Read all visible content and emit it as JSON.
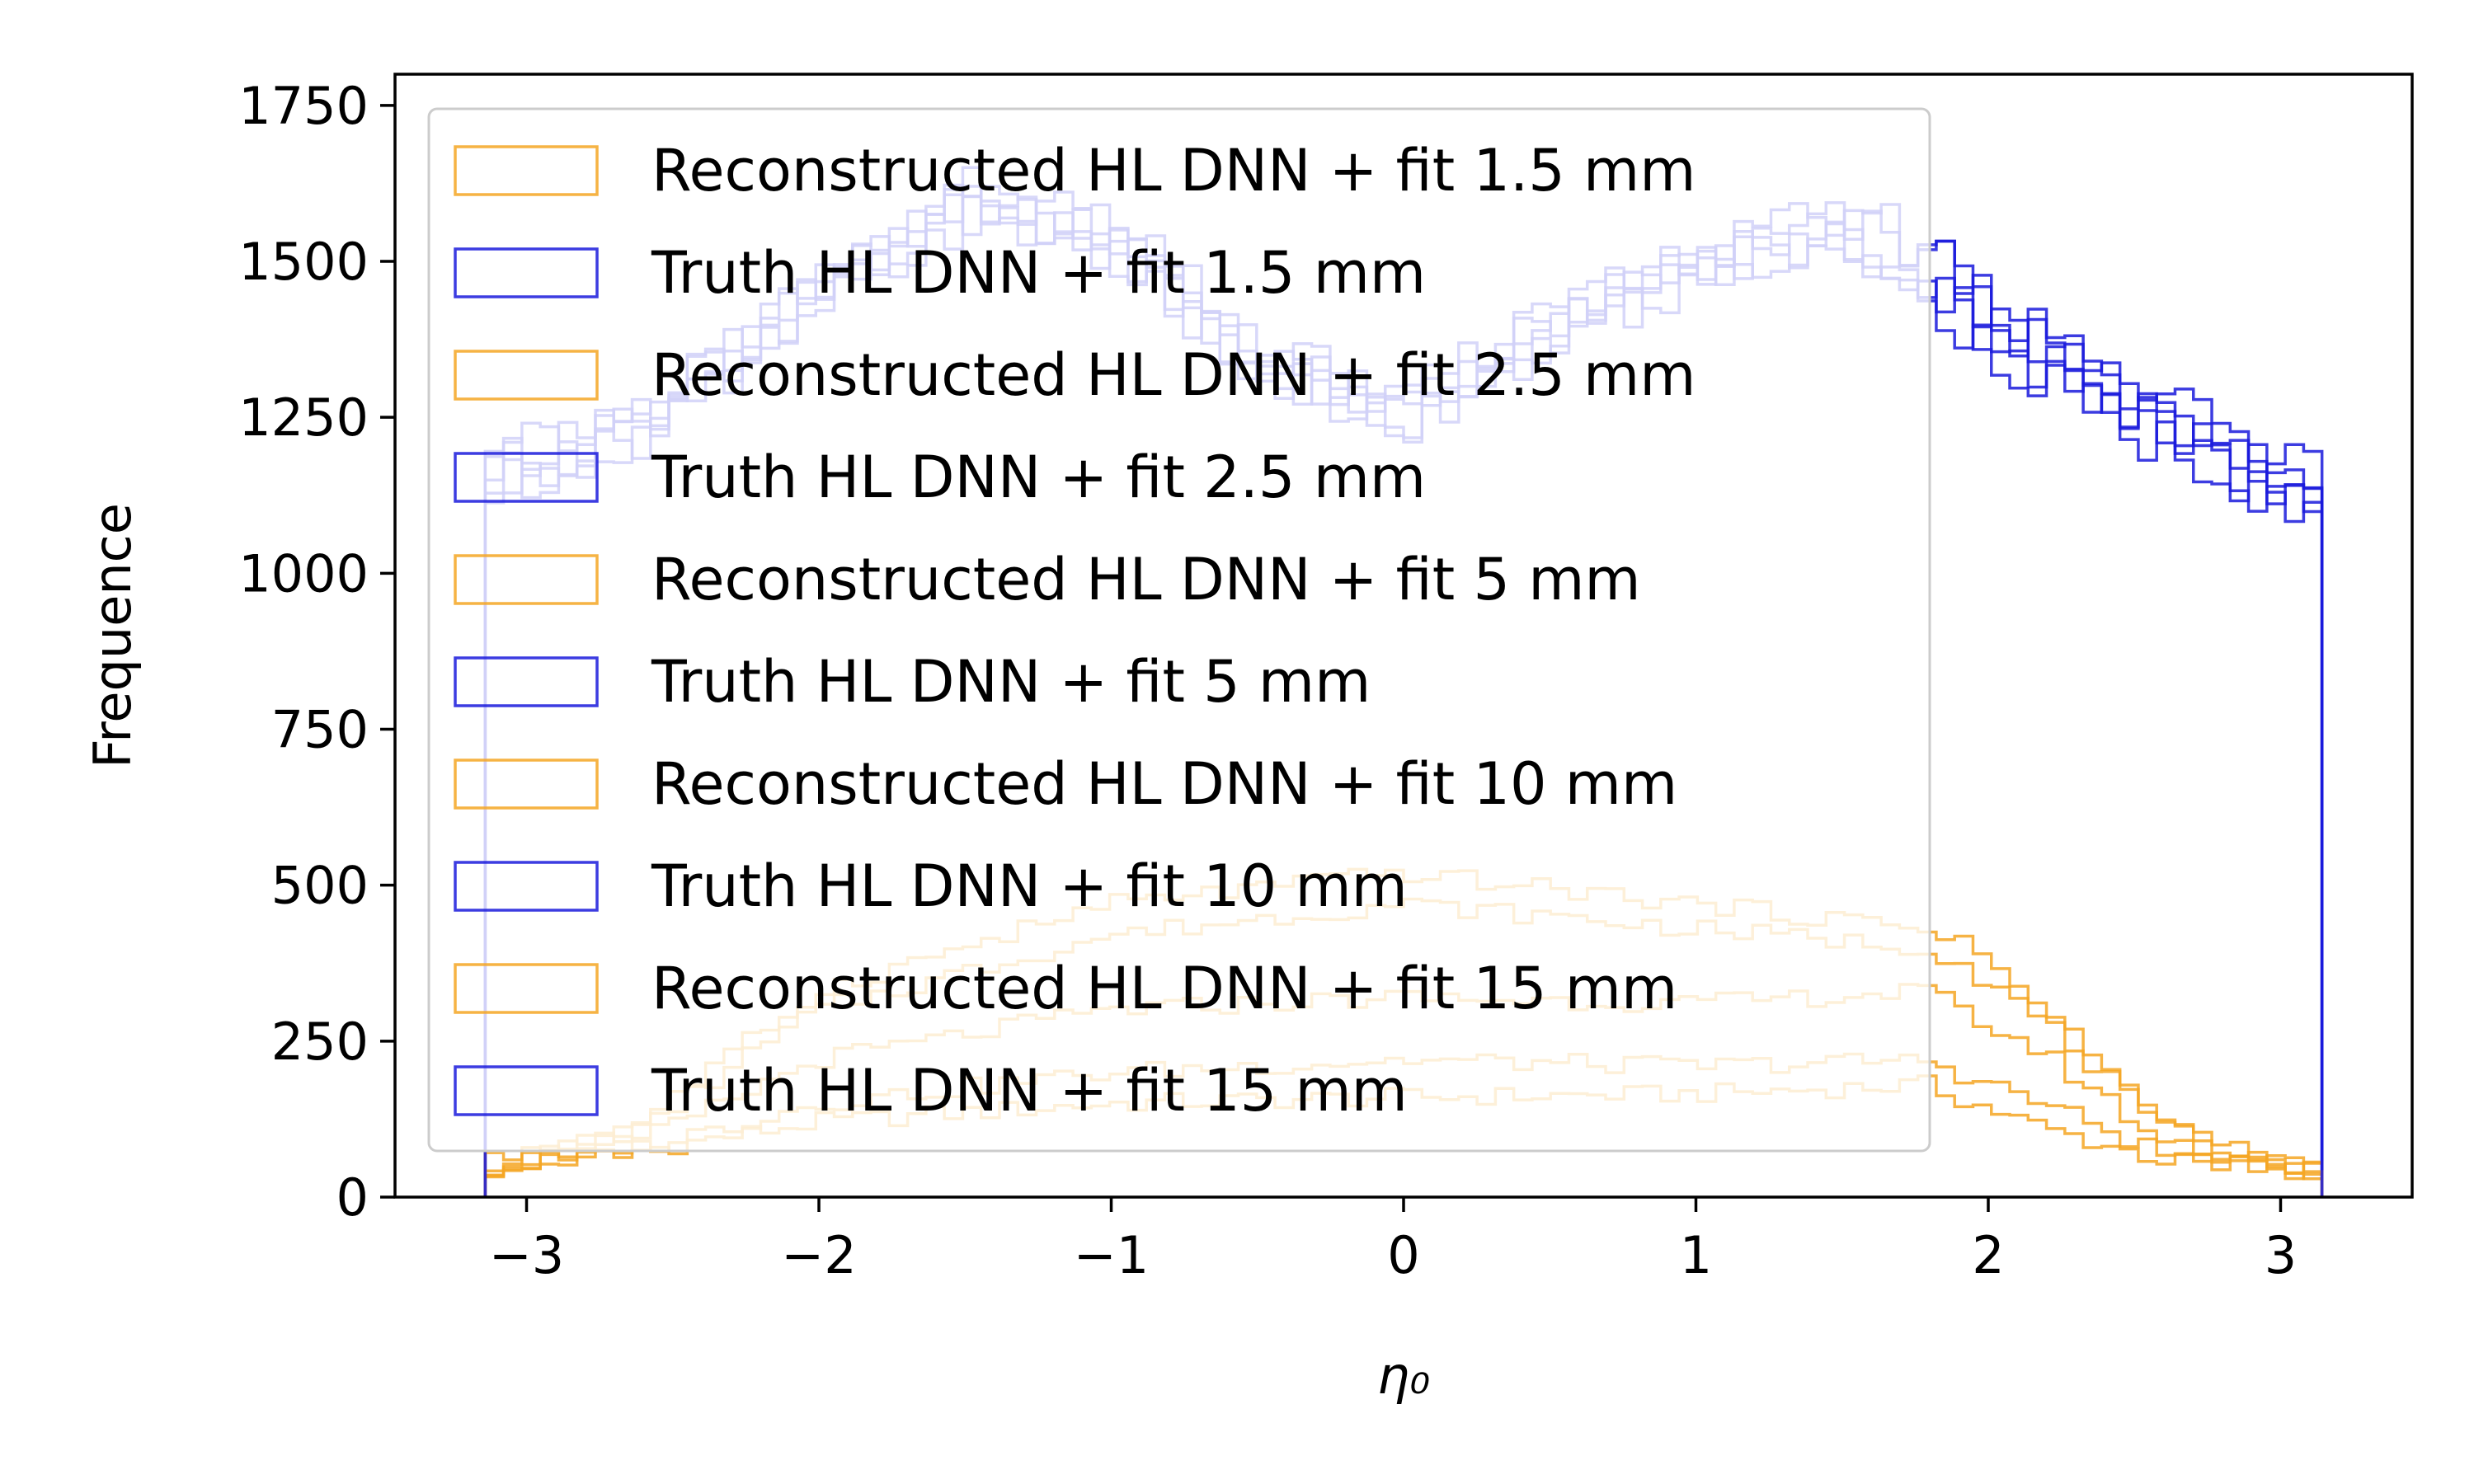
{
  "chart_data": {
    "type": "histogram",
    "title": "",
    "xlabel": "η₀",
    "ylabel": "Frequence",
    "xlim": [
      -3.45,
      3.45
    ],
    "ylim": [
      0,
      1800
    ],
    "x_ticks": [
      -3,
      -2,
      -1,
      0,
      1,
      2,
      3
    ],
    "x_tick_labels": [
      "−3",
      "−2",
      "−1",
      "0",
      "1",
      "2",
      "3"
    ],
    "y_ticks": [
      0,
      250,
      500,
      750,
      1000,
      1250,
      1500,
      1750
    ],
    "y_tick_labels": [
      "0",
      "250",
      "500",
      "750",
      "1000",
      "1250",
      "1500",
      "1750"
    ],
    "grid": false,
    "legend_position": "upper-left",
    "histtype": "step",
    "bins": {
      "range": [
        -3.1416,
        3.1416
      ],
      "count": 100
    },
    "colors": {
      "reconstructed": "#f5a623",
      "truth": "#1a1adc"
    },
    "series": [
      {
        "name": "Reconstructed HL DNN + fit 1.5 mm",
        "group": "reconstructed",
        "anchors": [
          [
            -3.14,
            40
          ],
          [
            -2.6,
            75
          ],
          [
            -2.0,
            120
          ],
          [
            -1.0,
            150
          ],
          [
            0.0,
            160
          ],
          [
            1.0,
            165
          ],
          [
            1.8,
            180
          ],
          [
            1.9,
            160
          ],
          [
            2.2,
            110
          ],
          [
            2.6,
            60
          ],
          [
            3.14,
            35
          ]
        ]
      },
      {
        "name": "Truth HL DNN + fit 1.5 mm",
        "group": "truth",
        "anchors": [
          [
            -3.14,
            1150
          ],
          [
            -2.6,
            1250
          ],
          [
            -2.0,
            1450
          ],
          [
            -1.5,
            1600
          ],
          [
            -1.0,
            1550
          ],
          [
            -0.5,
            1350
          ],
          [
            0.0,
            1250
          ],
          [
            0.5,
            1400
          ],
          [
            1.0,
            1500
          ],
          [
            1.5,
            1560
          ],
          [
            1.85,
            1500
          ],
          [
            2.2,
            1350
          ],
          [
            2.6,
            1250
          ],
          [
            3.14,
            1150
          ]
        ]
      },
      {
        "name": "Reconstructed HL DNN + fit 2.5 mm",
        "group": "reconstructed",
        "anchors": [
          [
            -3.14,
            40
          ],
          [
            -2.6,
            80
          ],
          [
            -2.0,
            150
          ],
          [
            -1.0,
            200
          ],
          [
            0.0,
            220
          ],
          [
            1.0,
            210
          ],
          [
            1.8,
            220
          ],
          [
            1.9,
            200
          ],
          [
            2.2,
            150
          ],
          [
            2.6,
            70
          ],
          [
            3.14,
            35
          ]
        ]
      },
      {
        "name": "Truth HL DNN + fit 2.5 mm",
        "group": "truth",
        "anchors": [
          [
            -3.14,
            1150
          ],
          [
            -2.6,
            1230
          ],
          [
            -2.0,
            1430
          ],
          [
            -1.5,
            1580
          ],
          [
            -1.0,
            1530
          ],
          [
            -0.5,
            1330
          ],
          [
            0.0,
            1240
          ],
          [
            0.5,
            1380
          ],
          [
            1.0,
            1480
          ],
          [
            1.5,
            1540
          ],
          [
            1.85,
            1450
          ],
          [
            2.2,
            1320
          ],
          [
            2.6,
            1210
          ],
          [
            3.14,
            1100
          ]
        ]
      },
      {
        "name": "Reconstructed HL DNN + fit 5 mm",
        "group": "reconstructed",
        "anchors": [
          [
            -3.14,
            45
          ],
          [
            -2.6,
            90
          ],
          [
            -2.0,
            220
          ],
          [
            -1.0,
            300
          ],
          [
            0.0,
            320
          ],
          [
            1.0,
            310
          ],
          [
            1.8,
            330
          ],
          [
            1.9,
            300
          ],
          [
            2.2,
            230
          ],
          [
            2.6,
            90
          ],
          [
            3.14,
            40
          ]
        ]
      },
      {
        "name": "Truth HL DNN + fit 5 mm",
        "group": "truth",
        "anchors": [
          [
            -3.14,
            1140
          ],
          [
            -2.6,
            1220
          ],
          [
            -2.0,
            1420
          ],
          [
            -1.5,
            1570
          ],
          [
            -1.0,
            1520
          ],
          [
            -0.5,
            1320
          ],
          [
            0.0,
            1230
          ],
          [
            0.5,
            1370
          ],
          [
            1.0,
            1470
          ],
          [
            1.5,
            1530
          ],
          [
            1.85,
            1420
          ],
          [
            2.2,
            1310
          ],
          [
            2.6,
            1200
          ],
          [
            3.14,
            1090
          ]
        ]
      },
      {
        "name": "Reconstructed HL DNN + fit 10 mm",
        "group": "reconstructed",
        "anchors": [
          [
            -3.14,
            50
          ],
          [
            -2.6,
            110
          ],
          [
            -2.0,
            300
          ],
          [
            -1.0,
            420
          ],
          [
            0.0,
            470
          ],
          [
            1.0,
            430
          ],
          [
            1.8,
            400
          ],
          [
            1.9,
            380
          ],
          [
            2.2,
            280
          ],
          [
            2.6,
            110
          ],
          [
            3.14,
            40
          ]
        ]
      },
      {
        "name": "Truth HL DNN + fit 10 mm",
        "group": "truth",
        "anchors": [
          [
            -3.14,
            1160
          ],
          [
            -2.6,
            1240
          ],
          [
            -2.0,
            1440
          ],
          [
            -1.5,
            1590
          ],
          [
            -1.0,
            1540
          ],
          [
            -0.5,
            1340
          ],
          [
            0.0,
            1250
          ],
          [
            0.5,
            1390
          ],
          [
            1.0,
            1490
          ],
          [
            1.5,
            1550
          ],
          [
            1.85,
            1470
          ],
          [
            2.2,
            1360
          ],
          [
            2.6,
            1230
          ],
          [
            3.14,
            1120
          ]
        ]
      },
      {
        "name": "Reconstructed HL DNN + fit 15 mm",
        "group": "reconstructed",
        "anchors": [
          [
            -3.14,
            55
          ],
          [
            -2.6,
            120
          ],
          [
            -2.0,
            330
          ],
          [
            -1.0,
            470
          ],
          [
            0.0,
            520
          ],
          [
            1.0,
            470
          ],
          [
            1.8,
            430
          ],
          [
            1.9,
            420
          ],
          [
            2.2,
            300
          ],
          [
            2.6,
            120
          ],
          [
            3.14,
            40
          ]
        ]
      },
      {
        "name": "Truth HL DNN + fit 15 mm",
        "group": "truth",
        "anchors": [
          [
            -3.14,
            1170
          ],
          [
            -2.6,
            1260
          ],
          [
            -2.0,
            1460
          ],
          [
            -1.5,
            1610
          ],
          [
            -1.0,
            1560
          ],
          [
            -0.5,
            1360
          ],
          [
            0.0,
            1270
          ],
          [
            0.5,
            1410
          ],
          [
            1.0,
            1510
          ],
          [
            1.5,
            1570
          ],
          [
            1.85,
            1520
          ],
          [
            2.2,
            1370
          ],
          [
            2.6,
            1280
          ],
          [
            3.14,
            1170
          ]
        ]
      }
    ]
  }
}
